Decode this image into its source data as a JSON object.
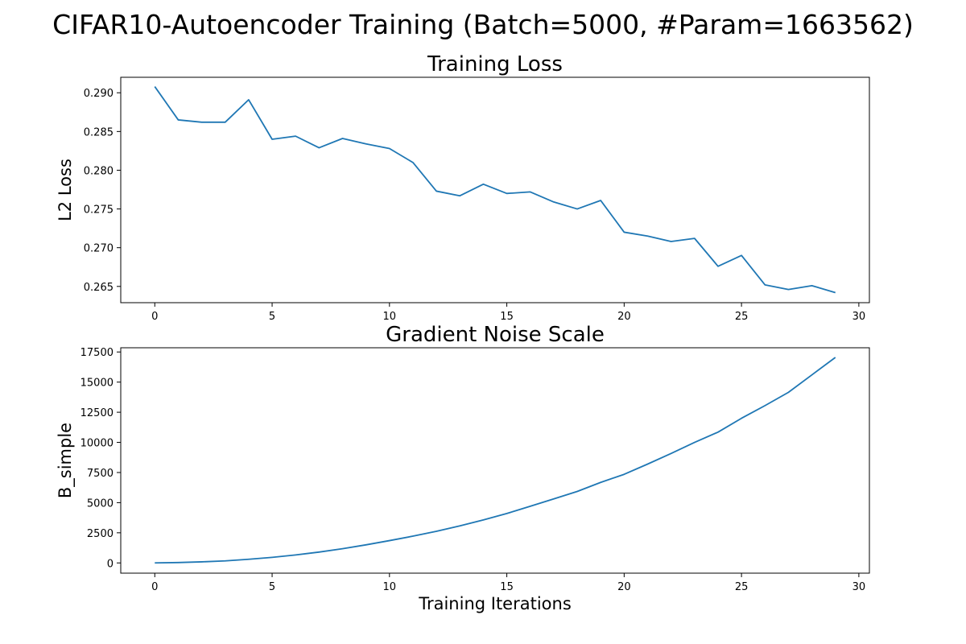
{
  "figure": {
    "suptitle": "CIFAR10-Autoencoder Training (Batch=5000, #Param=1663562)"
  },
  "chart_data": [
    {
      "type": "line",
      "title": "Training Loss",
      "xlabel": "",
      "ylabel": "L2 Loss",
      "xlim": [
        -1.45,
        30.45
      ],
      "ylim": [
        0.2629,
        0.292
      ],
      "xticks": [
        0,
        5,
        10,
        15,
        20,
        25,
        30
      ],
      "yticks": [
        0.265,
        0.27,
        0.275,
        0.28,
        0.285,
        0.29
      ],
      "ytick_labels": [
        "0.265",
        "0.270",
        "0.275",
        "0.280",
        "0.285",
        "0.290"
      ],
      "grid": false,
      "color": "#1f77b4",
      "series": [
        {
          "x": [
            0,
            1,
            2,
            3,
            4,
            5,
            6,
            7,
            8,
            9,
            10,
            11,
            12,
            13,
            14,
            15,
            16,
            17,
            18,
            19,
            20,
            21,
            22,
            23,
            24,
            25,
            26,
            27,
            28,
            29
          ],
          "values": [
            0.2908,
            0.2865,
            0.2862,
            0.2862,
            0.2891,
            0.284,
            0.2844,
            0.2829,
            0.2841,
            0.2834,
            0.2828,
            0.281,
            0.2773,
            0.2767,
            0.2782,
            0.277,
            0.2772,
            0.2759,
            0.275,
            0.2761,
            0.272,
            0.2715,
            0.2708,
            0.2712,
            0.2676,
            0.269,
            0.2652,
            0.2646,
            0.2651,
            0.2642
          ]
        }
      ]
    },
    {
      "type": "line",
      "title": "Gradient Noise Scale",
      "xlabel": "Training Iterations",
      "ylabel": "B_simple",
      "xlim": [
        -1.45,
        30.45
      ],
      "ylim": [
        -850,
        17850
      ],
      "xticks": [
        0,
        5,
        10,
        15,
        20,
        25,
        30
      ],
      "yticks": [
        0,
        2500,
        5000,
        7500,
        10000,
        12500,
        15000,
        17500
      ],
      "ytick_labels": [
        "0",
        "2500",
        "5000",
        "7500",
        "10000",
        "12500",
        "15000",
        "17500"
      ],
      "grid": false,
      "color": "#1f77b4",
      "series": [
        {
          "x": [
            0,
            1,
            2,
            3,
            4,
            5,
            6,
            7,
            8,
            9,
            10,
            11,
            12,
            13,
            14,
            15,
            16,
            17,
            18,
            19,
            20,
            21,
            22,
            23,
            24,
            25,
            26,
            27,
            28,
            29
          ],
          "values": [
            0,
            30,
            90,
            170,
            300,
            460,
            660,
            900,
            1180,
            1500,
            1850,
            2220,
            2620,
            3070,
            3570,
            4100,
            4700,
            5310,
            5930,
            6680,
            7350,
            8200,
            9080,
            10000,
            10850,
            12000,
            13050,
            14150,
            15600,
            17050
          ]
        }
      ]
    }
  ]
}
